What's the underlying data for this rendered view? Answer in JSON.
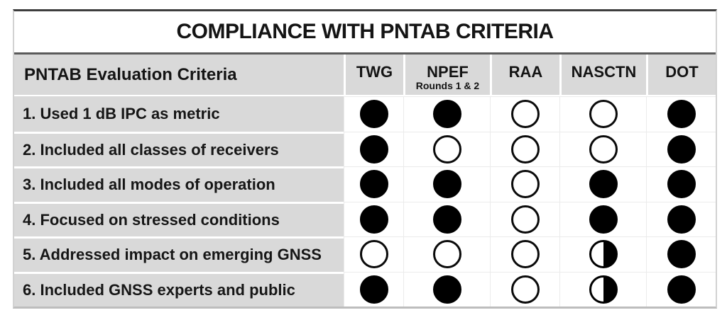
{
  "title": "COMPLIANCE WITH PNTAB CRITERIA",
  "table": {
    "criteria_header": "PNTAB Evaluation Criteria",
    "columns": [
      {
        "label": "TWG",
        "sublabel": ""
      },
      {
        "label": "NPEF",
        "sublabel": "Rounds 1 & 2"
      },
      {
        "label": "RAA",
        "sublabel": ""
      },
      {
        "label": "NASCTN",
        "sublabel": ""
      },
      {
        "label": "DOT",
        "sublabel": ""
      }
    ],
    "rows": [
      {
        "label": "1. Used 1 dB IPC as metric",
        "marks": [
          "filled",
          "filled",
          "empty",
          "empty",
          "filled"
        ]
      },
      {
        "label": "2. Included all classes of receivers",
        "marks": [
          "filled",
          "empty",
          "empty",
          "empty",
          "filled"
        ]
      },
      {
        "label": "3. Included all modes of operation",
        "marks": [
          "filled",
          "filled",
          "empty",
          "filled",
          "filled"
        ]
      },
      {
        "label": "4. Focused on stressed conditions",
        "marks": [
          "filled",
          "filled",
          "empty",
          "filled",
          "filled"
        ]
      },
      {
        "label": "5. Addressed impact on emerging GNSS",
        "marks": [
          "empty",
          "empty",
          "empty",
          "half",
          "filled"
        ]
      },
      {
        "label": "6. Included GNSS experts and public",
        "marks": [
          "filled",
          "filled",
          "empty",
          "half",
          "filled"
        ]
      }
    ]
  },
  "chart_data": {
    "type": "table",
    "title": "COMPLIANCE WITH PNTAB CRITERIA",
    "row_header": "PNTAB Evaluation Criteria",
    "columns": [
      "TWG",
      "NPEF Rounds 1 & 2",
      "RAA",
      "NASCTN",
      "DOT"
    ],
    "rows": [
      {
        "criterion": "1. Used 1 dB IPC as metric",
        "values": [
          "filled",
          "filled",
          "open",
          "open",
          "filled"
        ]
      },
      {
        "criterion": "2. Included all classes of receivers",
        "values": [
          "filled",
          "open",
          "open",
          "open",
          "filled"
        ]
      },
      {
        "criterion": "3. Included all modes of operation",
        "values": [
          "filled",
          "filled",
          "open",
          "filled",
          "filled"
        ]
      },
      {
        "criterion": "4. Focused on stressed conditions",
        "values": [
          "filled",
          "filled",
          "open",
          "filled",
          "filled"
        ]
      },
      {
        "criterion": "5. Addressed impact on emerging GNSS",
        "values": [
          "open",
          "open",
          "open",
          "half-right",
          "filled"
        ]
      },
      {
        "criterion": "6. Included GNSS experts and public",
        "values": [
          "filled",
          "filled",
          "open",
          "half-right",
          "filled"
        ]
      }
    ],
    "mark_legend": {
      "filled": "full black circle",
      "open": "outlined white circle",
      "half-right": "circle with right half filled black"
    }
  },
  "colors": {
    "cell_gray": "#d9d9d9",
    "text_black": "#141414",
    "ball_black": "#000000",
    "top_rule": "#3d3d3d",
    "title_rule": "#5a5a5a",
    "faint_grid": "#ebebeb",
    "background": "#ffffff"
  }
}
